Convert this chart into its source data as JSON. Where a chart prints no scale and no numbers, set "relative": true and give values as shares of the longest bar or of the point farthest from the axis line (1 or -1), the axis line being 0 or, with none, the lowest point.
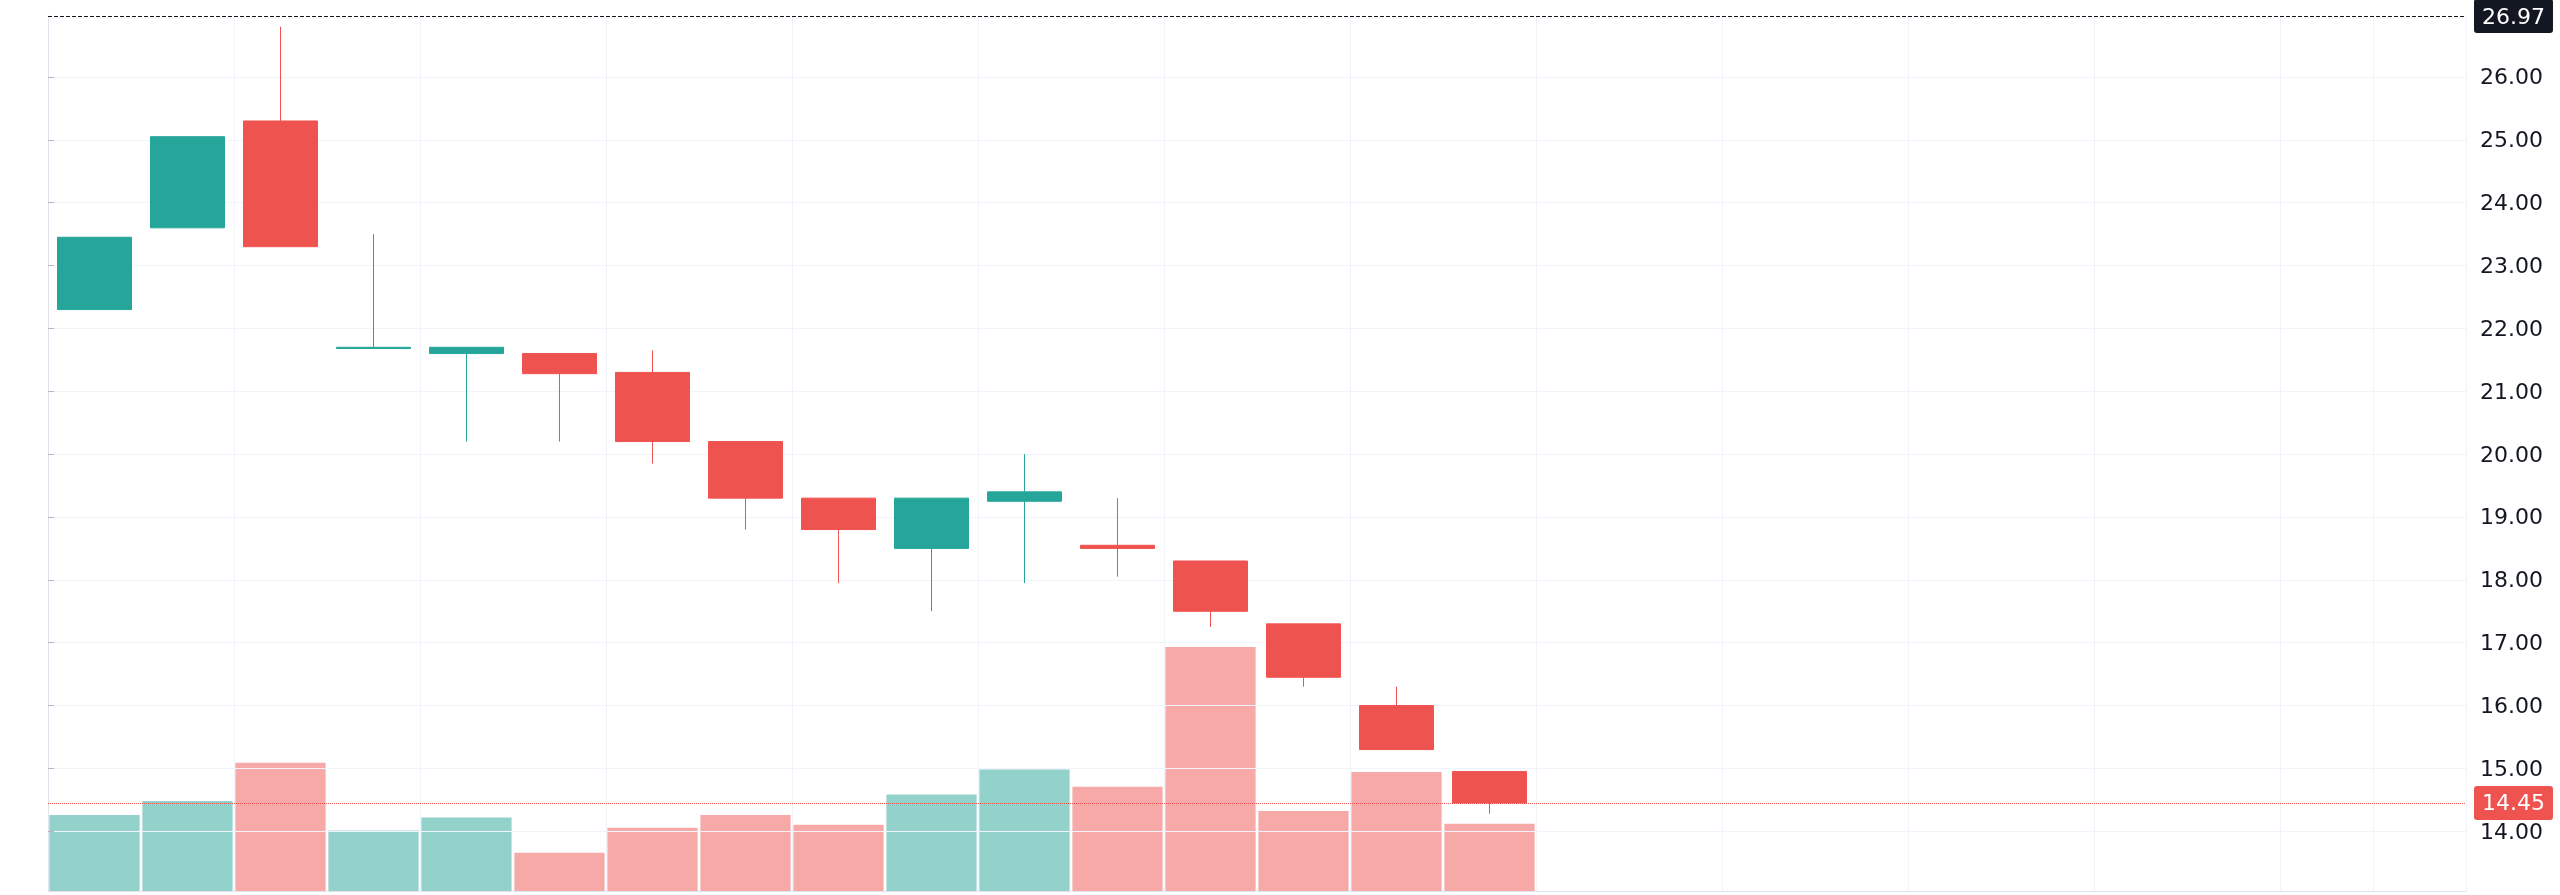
{
  "chart_data": [
    {
      "type": "candlestick",
      "categories": [
        null,
        null,
        null,
        null,
        null,
        null,
        null,
        null,
        null,
        null,
        null,
        null,
        null,
        null,
        null,
        null,
        null,
        null,
        null,
        null,
        null,
        null,
        null,
        null,
        null,
        null
      ],
      "ohlc": [
        [
          22.3,
          23.45,
          22.3,
          23.45
        ],
        [
          23.6,
          25.05,
          23.6,
          25.05
        ],
        [
          25.3,
          26.8,
          23.3,
          23.3
        ],
        [
          21.68,
          23.5,
          21.68,
          21.7
        ],
        [
          21.6,
          21.7,
          20.2,
          21.7
        ],
        [
          21.6,
          21.6,
          20.2,
          21.28
        ],
        [
          21.3,
          21.65,
          19.85,
          20.2
        ],
        [
          20.2,
          20.2,
          18.8,
          19.3
        ],
        [
          19.3,
          19.3,
          17.95,
          18.8
        ],
        [
          18.5,
          19.3,
          17.5,
          19.3
        ],
        [
          19.25,
          20.0,
          17.95,
          19.4
        ],
        [
          18.55,
          19.3,
          18.05,
          18.5
        ],
        [
          18.3,
          18.3,
          17.25,
          17.5
        ],
        [
          17.3,
          17.3,
          16.3,
          16.45
        ],
        [
          16.0,
          16.3,
          15.3,
          15.3
        ],
        [
          14.95,
          14.95,
          14.28,
          14.45
        ],
        null,
        null,
        null,
        null,
        null,
        null,
        null,
        null,
        null,
        null
      ],
      "colors": [
        "#26a69a",
        "#26a69a",
        "#ef5350",
        "#26a69a",
        "#26a69a",
        "#ef5350",
        "#ef5350",
        "#ef5350",
        "#ef5350",
        "#26a69a",
        "#26a69a",
        "#ef5350",
        "#ef5350",
        "#ef5350",
        "#ef5350",
        "#ef5350",
        null,
        null,
        null,
        null,
        null,
        null,
        null,
        null,
        null,
        null
      ],
      "ylim": [
        13.05,
        26.97
      ],
      "yticks": [
        {
          "value": 14,
          "label": "14.00"
        },
        {
          "value": 15,
          "label": "15.00"
        },
        {
          "value": 16,
          "label": "16.00"
        },
        {
          "value": 17,
          "label": "17.00"
        },
        {
          "value": 18,
          "label": "18.00"
        },
        {
          "value": 19,
          "label": "19.00"
        },
        {
          "value": 20,
          "label": "20.00"
        },
        {
          "value": 21,
          "label": "21.00"
        },
        {
          "value": 22,
          "label": "22.00"
        },
        {
          "value": 23,
          "label": "23.00"
        },
        {
          "value": 24,
          "label": "24.00"
        },
        {
          "value": 25,
          "label": "25.00"
        },
        {
          "value": 26,
          "label": "26.00"
        }
      ],
      "ref_lines": [
        {
          "axis": "y",
          "value": 14.45,
          "label": "14.45",
          "color": "#ef5350",
          "line_style": "dotted"
        },
        {
          "axis": "y",
          "value": 26.97,
          "label": "26.97",
          "color": "#131722",
          "line_style": "dashed"
        }
      ],
      "grid": true,
      "tick_labels": "y"
    },
    {
      "type": "bar",
      "relative": true,
      "categories": [
        null,
        null,
        null,
        null,
        null,
        null,
        null,
        null,
        null,
        null,
        null,
        null,
        null,
        null,
        null,
        null,
        null,
        null,
        null,
        null,
        null,
        null,
        null,
        null,
        null,
        null
      ],
      "values": [
        0.311,
        0.369,
        0.526,
        0.248,
        0.301,
        0.157,
        0.259,
        0.311,
        0.272,
        0.395,
        0.498,
        0.427,
        1,
        0.328,
        0.488,
        0.276,
        null,
        null,
        null,
        null,
        null,
        null,
        null,
        null,
        null,
        null
      ],
      "colors": [
        "#93d1cb",
        "#93d1cb",
        "#f7a9a7",
        "#93d1cb",
        "#93d1cb",
        "#f7a9a7",
        "#f7a9a7",
        "#f7a9a7",
        "#f7a9a7",
        "#93d1cb",
        "#93d1cb",
        "#f7a9a7",
        "#f7a9a7",
        "#f7a9a7",
        "#f7a9a7",
        "#f7a9a7",
        null,
        null,
        null,
        null,
        null,
        null,
        null,
        null,
        null,
        null
      ],
      "grid": false,
      "tick_labels": false
    }
  ]
}
